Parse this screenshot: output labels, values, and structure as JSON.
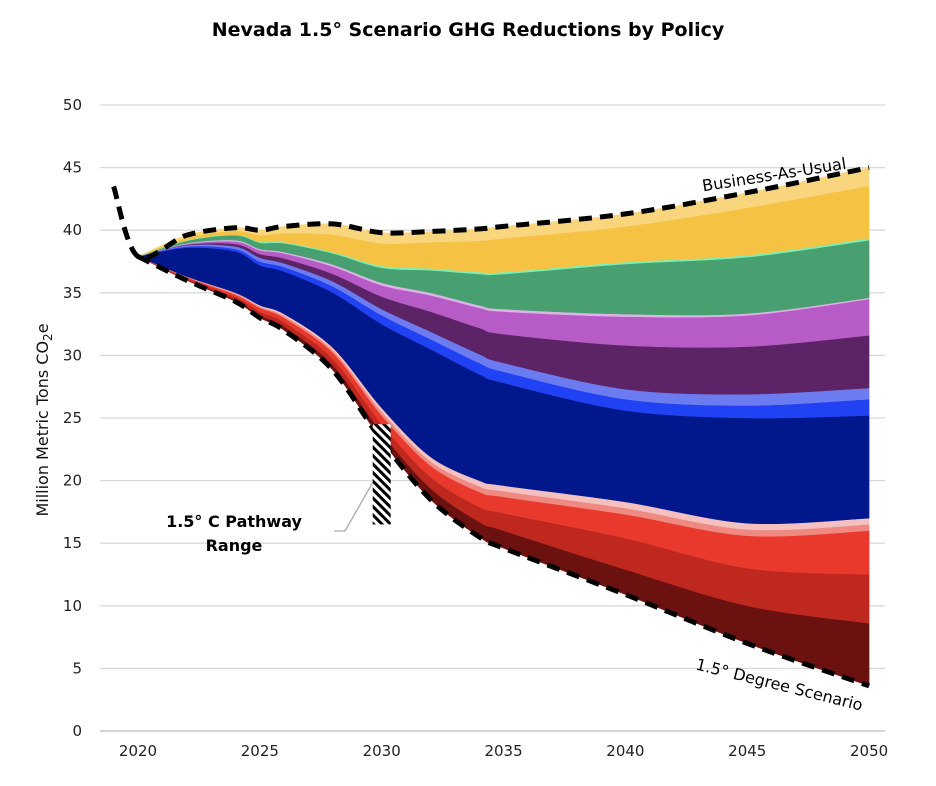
{
  "chart_data": {
    "type": "area",
    "stacked": true,
    "title": "Nevada 1.5° Scenario GHG Reductions by Policy",
    "ylabel": "Million Metric Tons CO",
    "ylabel_sub": "2",
    "ylabel_suffix": "e",
    "xlabel": "",
    "xlim": [
      2018.5,
      2050.7
    ],
    "ylim": [
      0,
      50
    ],
    "xticks": [
      2020,
      2025,
      2030,
      2035,
      2040,
      2045,
      2050
    ],
    "yticks": [
      0,
      5,
      10,
      15,
      20,
      25,
      30,
      35,
      40,
      45,
      50
    ],
    "grid": "horizontal",
    "legend": "none",
    "x": [
      2020,
      2022,
      2024,
      2025,
      2026,
      2028,
      2030,
      2032,
      2034,
      2035,
      2040,
      2045,
      2050
    ],
    "baseline_scenario": {
      "label": "1.5° Degree Scenario",
      "values": [
        37.9,
        36.0,
        34.3,
        33.0,
        32.0,
        28.8,
        23.2,
        18.5,
        15.5,
        14.6,
        10.9,
        7.0,
        3.6
      ]
    },
    "business_as_usual": {
      "label": "Business-As-Usual",
      "x": [
        2019,
        2020,
        2022,
        2024,
        2025,
        2026,
        2028,
        2030,
        2032,
        2034,
        2035,
        2040,
        2045,
        2050
      ],
      "values": [
        43.5,
        37.9,
        39.6,
        40.2,
        40.0,
        40.3,
        40.5,
        39.8,
        39.9,
        40.1,
        40.3,
        41.3,
        43.0,
        45.0
      ]
    },
    "series": [
      {
        "color": "#6b1210",
        "values": [
          0,
          0.05,
          0.15,
          0.2,
          0.3,
          0.4,
          0.6,
          0.9,
          1.2,
          1.4,
          2.0,
          3.0,
          5.0
        ]
      },
      {
        "color": "#be281f",
        "values": [
          0,
          0.1,
          0.2,
          0.3,
          0.35,
          0.5,
          0.7,
          0.9,
          1.2,
          1.4,
          2.5,
          3.0,
          3.9
        ]
      },
      {
        "color": "#e9392d",
        "values": [
          0,
          0.1,
          0.2,
          0.3,
          0.35,
          0.5,
          0.7,
          0.9,
          1.2,
          1.3,
          1.9,
          2.6,
          3.5
        ]
      },
      {
        "color": "#ef8a82",
        "values": [
          0,
          0.03,
          0.1,
          0.1,
          0.15,
          0.2,
          0.3,
          0.35,
          0.45,
          0.45,
          0.5,
          0.5,
          0.5
        ]
      },
      {
        "color": "#f5c0c0",
        "values": [
          0,
          0.02,
          0.05,
          0.1,
          0.15,
          0.2,
          0.3,
          0.35,
          0.45,
          0.45,
          0.5,
          0.5,
          0.5
        ]
      },
      {
        "color": "#00188c",
        "values": [
          0,
          2.3,
          3.3,
          3.2,
          3.4,
          4.4,
          6.7,
          8.6,
          8.5,
          8.2,
          7.3,
          8.4,
          8.2
        ]
      },
      {
        "color": "#2142f2",
        "values": [
          0,
          0.1,
          0.2,
          0.3,
          0.35,
          0.5,
          0.7,
          0.8,
          0.9,
          0.9,
          0.9,
          1.0,
          1.3
        ]
      },
      {
        "color": "#6c7cf0",
        "values": [
          0,
          0.1,
          0.2,
          0.3,
          0.3,
          0.4,
          0.5,
          0.6,
          0.7,
          0.7,
          0.8,
          0.9,
          0.9
        ]
      },
      {
        "color": "#5c2466",
        "values": [
          0,
          0.05,
          0.2,
          0.3,
          0.4,
          0.6,
          1.0,
          1.6,
          2.1,
          2.3,
          3.5,
          3.8,
          4.2
        ]
      },
      {
        "color": "#b75cc6",
        "values": [
          0,
          0.05,
          0.2,
          0.3,
          0.4,
          0.6,
          0.9,
          1.3,
          1.6,
          1.8,
          2.3,
          2.5,
          2.9
        ]
      },
      {
        "color": "#dcb4e6",
        "values": [
          0,
          0.05,
          0.1,
          0.1,
          0.1,
          0.15,
          0.2,
          0.2,
          0.2,
          0.2,
          0.2,
          0.15,
          0.1
        ]
      },
      {
        "color": "#48a070",
        "values": [
          0,
          0.2,
          0.4,
          0.5,
          0.7,
          0.9,
          1.2,
          1.8,
          2.5,
          2.8,
          4.0,
          4.5,
          4.6
        ]
      },
      {
        "color": "#7cf0b4",
        "values": [
          0,
          0.05,
          0.05,
          0.1,
          0.1,
          0.1,
          0.15,
          0.15,
          0.15,
          0.15,
          0.15,
          0.15,
          0.15
        ]
      },
      {
        "color": "#f5c244",
        "values": [
          0,
          0.2,
          0.3,
          0.5,
          0.7,
          1.4,
          1.8,
          2.1,
          2.5,
          2.7,
          2.85,
          3.8,
          4.2
        ]
      },
      {
        "color": "#f9d67e",
        "values": [
          0,
          0.2,
          0.25,
          0.4,
          0.55,
          0.85,
          0.85,
          0.85,
          0.95,
          0.95,
          1.0,
          1.2,
          1.45
        ]
      }
    ],
    "annotations": {
      "pathway_label_line1": "1.5° C Pathway",
      "pathway_label_line2": "Range",
      "pathway_range": {
        "x": 2030,
        "low": 16.5,
        "high": 24.5
      }
    }
  }
}
